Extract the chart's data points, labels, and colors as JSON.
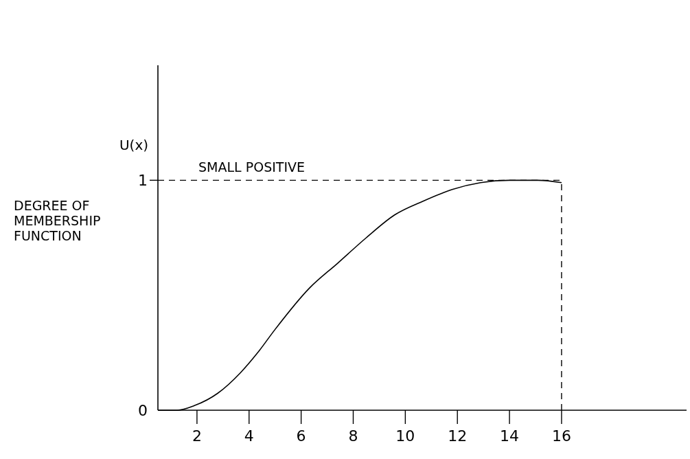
{
  "chart_data": {
    "type": "line",
    "ylabel": "U(x)",
    "annotations": [
      "DEGREE OF MEMBERSHIP FUNCTION",
      {
        "text": "SMALL POSITIVE",
        "x": 4.1,
        "y": 1
      }
    ],
    "x": [
      0.5,
      1.24,
      1.9,
      2.8,
      3.67,
      4.33,
      4.99,
      6.31,
      7.41,
      8.5,
      9.6,
      10.7,
      11.8,
      12.9,
      14.0,
      15.1,
      16
    ],
    "series": [
      {
        "color": "#000000",
        "values": [
          0,
          0,
          0.02,
          0.074,
          0.163,
          0.25,
          0.35,
          0.53,
          0.64,
          0.75,
          0.85,
          0.91,
          0.96,
          0.99,
          1.0,
          1.0,
          0.99
        ]
      }
    ],
    "xlim": [
      0.5,
      20.8
    ],
    "ylim": [
      0,
      1.5
    ],
    "xticks": [
      2,
      4,
      6,
      8,
      10,
      12,
      14,
      16
    ],
    "yticks": [
      0,
      1
    ],
    "ref_lines": [
      {
        "axis": "y",
        "value": 1,
        "color": "#000000",
        "line_style": "dashed"
      },
      {
        "axis": "x",
        "value": 16,
        "color": "#000000",
        "line_style": "dashed"
      }
    ],
    "marker": "none",
    "line_style": "solid",
    "grid": false
  }
}
